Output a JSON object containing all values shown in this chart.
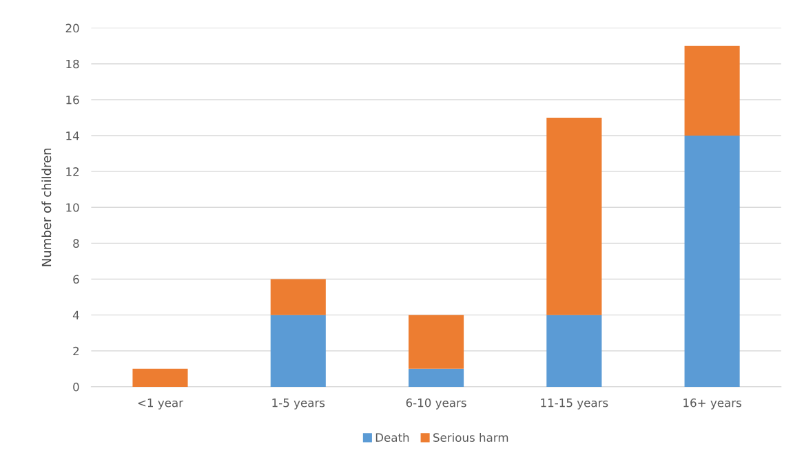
{
  "chart_data": {
    "type": "bar",
    "stacked": true,
    "ylabel": "Number of children",
    "categories": [
      "<1 year",
      "1-5 years",
      "6-10 years",
      "11-15 years",
      "16+ years"
    ],
    "series": [
      {
        "name": "Death",
        "color": "#5b9bd5",
        "values": [
          0,
          4,
          1,
          4,
          14
        ]
      },
      {
        "name": "Serious harm",
        "color": "#ed7d31",
        "values": [
          1,
          2,
          3,
          11,
          5
        ]
      }
    ],
    "ylim": [
      0,
      20
    ],
    "yticks": [
      0,
      2,
      4,
      6,
      8,
      10,
      12,
      14,
      16,
      18,
      20
    ],
    "grid": "y",
    "legend": "bottom"
  }
}
